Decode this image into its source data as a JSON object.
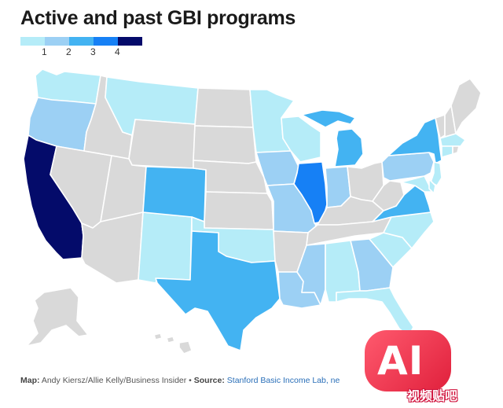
{
  "title": "Active and past GBI programs",
  "legend": {
    "labels": [
      "1",
      "2",
      "3",
      "4"
    ],
    "colors": [
      "#b5ecf8",
      "#9cd0f4",
      "#43b3f2",
      "#1680f5",
      "#040b6a"
    ]
  },
  "colors": {
    "none": "#d9d9d9",
    "level_1": "#b5ecf8",
    "level_2": "#9cd0f4",
    "level_3": "#43b3f2",
    "level_3b": "#1680f5",
    "level_4": "#040b6a"
  },
  "states": [
    {
      "name": "Washington",
      "level": 1
    },
    {
      "name": "Oregon",
      "level": 2
    },
    {
      "name": "California",
      "level": 4
    },
    {
      "name": "Nevada",
      "level": 0
    },
    {
      "name": "Idaho",
      "level": 0
    },
    {
      "name": "Montana",
      "level": 1
    },
    {
      "name": "Wyoming",
      "level": 0
    },
    {
      "name": "Utah",
      "level": 0
    },
    {
      "name": "Arizona",
      "level": 0
    },
    {
      "name": "New Mexico",
      "level": 1
    },
    {
      "name": "Colorado",
      "level": 3
    },
    {
      "name": "North Dakota",
      "level": 0
    },
    {
      "name": "South Dakota",
      "level": 0
    },
    {
      "name": "Nebraska",
      "level": 0
    },
    {
      "name": "Kansas",
      "level": 0
    },
    {
      "name": "Oklahoma",
      "level": 1
    },
    {
      "name": "Texas",
      "level": 3
    },
    {
      "name": "Minnesota",
      "level": 1
    },
    {
      "name": "Iowa",
      "level": 2
    },
    {
      "name": "Missouri",
      "level": 2
    },
    {
      "name": "Arkansas",
      "level": 0
    },
    {
      "name": "Louisiana",
      "level": 2
    },
    {
      "name": "Wisconsin",
      "level": 1
    },
    {
      "name": "Illinois",
      "level": "3b"
    },
    {
      "name": "Michigan",
      "level": 3
    },
    {
      "name": "Indiana",
      "level": 2
    },
    {
      "name": "Ohio",
      "level": 0
    },
    {
      "name": "Kentucky",
      "level": 0
    },
    {
      "name": "Tennessee",
      "level": 0
    },
    {
      "name": "Mississippi",
      "level": 2
    },
    {
      "name": "Alabama",
      "level": 1
    },
    {
      "name": "Georgia",
      "level": 2
    },
    {
      "name": "Florida",
      "level": 1
    },
    {
      "name": "South Carolina",
      "level": 1
    },
    {
      "name": "North Carolina",
      "level": 1
    },
    {
      "name": "Virginia",
      "level": 3
    },
    {
      "name": "West Virginia",
      "level": 0
    },
    {
      "name": "Pennsylvania",
      "level": 2
    },
    {
      "name": "New York",
      "level": 3
    },
    {
      "name": "New Jersey",
      "level": 1
    },
    {
      "name": "Delaware",
      "level": 1
    },
    {
      "name": "Maryland",
      "level": 1
    },
    {
      "name": "Vermont",
      "level": 0
    },
    {
      "name": "New Hampshire",
      "level": 0
    },
    {
      "name": "Maine",
      "level": 0
    },
    {
      "name": "Massachusetts",
      "level": 1
    },
    {
      "name": "Connecticut",
      "level": 1
    },
    {
      "name": "Rhode Island",
      "level": 0
    },
    {
      "name": "Alaska",
      "level": 0
    },
    {
      "name": "Hawaii",
      "level": 0
    }
  ],
  "footer": {
    "credit_label": "Map:",
    "credit_names": " Andy Kiersz/Allie Kelly/Business Insider • ",
    "source_label": "Source:",
    "source_link": " Stanford Basic Income Lab, ne"
  },
  "watermark": {
    "badge_text": "AI",
    "caption": "视频贴吧"
  }
}
